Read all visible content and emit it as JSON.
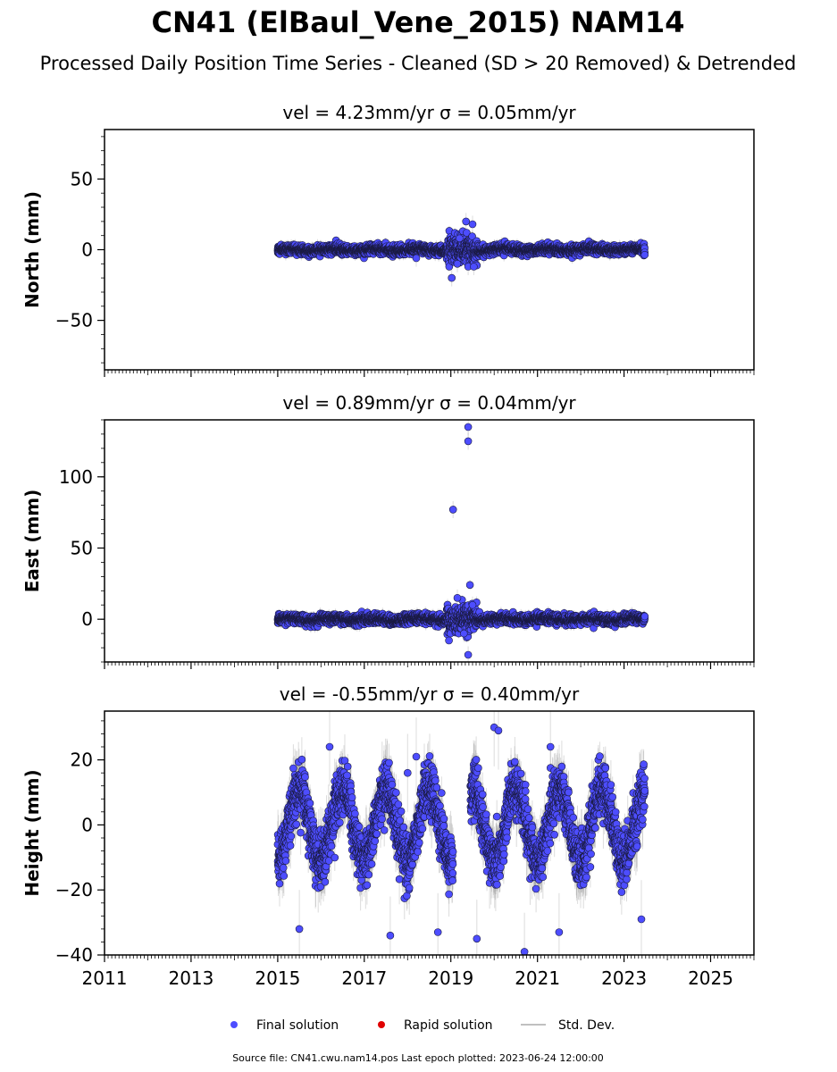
{
  "title": "CN41 (ElBaul_Vene_2015) NAM14",
  "subtitle": "Processed Daily Position Time Series - Cleaned (SD > 20 Removed) & Detrended",
  "footer": "Source file: CN41.cwu.nam14.pos  Last epoch plotted: 2023-06-24 12:00:00",
  "legend": [
    {
      "label": "Final solution",
      "color": "#4d4dff",
      "marker": "circle"
    },
    {
      "label": "Rapid solution",
      "color": "#e00000",
      "marker": "circle"
    },
    {
      "label": "Std. Dev.",
      "color": "#c0c0c0",
      "marker": "line"
    }
  ],
  "chart_data": [
    {
      "type": "scatter",
      "title": "vel = 4.23mm/yr   σ = 0.05mm/yr",
      "ylabel": "North (mm)",
      "xlim": [
        2011,
        2026
      ],
      "ylim": [
        -85,
        85
      ],
      "yticks": [
        -50,
        0,
        50
      ],
      "xticks": [
        2011,
        2013,
        2015,
        2017,
        2019,
        2021,
        2023,
        2025
      ],
      "x_range": [
        2015.0,
        2023.48
      ],
      "noise_sd": 1.6,
      "seasonal_amplitude": 0.8,
      "std_dev_band": 3,
      "disturbed_interval": [
        2018.9,
        2019.6
      ],
      "disturbed_sd": 5,
      "outliers": [
        {
          "x": 2019.35,
          "y": 20
        },
        {
          "x": 2019.5,
          "y": 18
        },
        {
          "x": 2019.02,
          "y": -20
        },
        {
          "x": 2019.2,
          "y": 8
        },
        {
          "x": 2019.4,
          "y": -12
        },
        {
          "x": 2019.53,
          "y": -12
        },
        {
          "x": 2019.15,
          "y": -10
        },
        {
          "x": 2018.2,
          "y": -6
        }
      ]
    },
    {
      "type": "scatter",
      "title": "vel = 0.89mm/yr   σ = 0.04mm/yr",
      "ylabel": "East (mm)",
      "xlim": [
        2011,
        2026
      ],
      "ylim": [
        -30,
        140
      ],
      "yticks": [
        0,
        50,
        100
      ],
      "xticks": [
        2011,
        2013,
        2015,
        2017,
        2019,
        2021,
        2023,
        2025
      ],
      "x_range": [
        2015.0,
        2023.48
      ],
      "noise_sd": 1.6,
      "seasonal_amplitude": 0.8,
      "std_dev_band": 3,
      "disturbed_interval": [
        2018.9,
        2019.6
      ],
      "disturbed_sd": 5,
      "outliers": [
        {
          "x": 2019.4,
          "y": 135
        },
        {
          "x": 2019.4,
          "y": 125
        },
        {
          "x": 2019.05,
          "y": 77
        },
        {
          "x": 2019.15,
          "y": 15
        },
        {
          "x": 2019.4,
          "y": -25
        },
        {
          "x": 2019.5,
          "y": 10
        },
        {
          "x": 2019.3,
          "y": -10
        }
      ]
    },
    {
      "type": "scatter",
      "title": "vel = -0.55mm/yr   σ = 0.40mm/yr",
      "ylabel": "Height (mm)",
      "xlim": [
        2011,
        2026
      ],
      "ylim": [
        -40,
        35
      ],
      "yticks": [
        -40,
        -20,
        0,
        20
      ],
      "xticks": [
        2011,
        2013,
        2015,
        2017,
        2019,
        2021,
        2023,
        2025
      ],
      "x_range": [
        2015.0,
        2023.48
      ],
      "noise_sd": 4,
      "seasonal_amplitude": 11,
      "seasonal_phase": 0.25,
      "std_dev_band": 6,
      "data_gap": [
        2019.05,
        2019.45
      ],
      "outliers": [
        {
          "x": 2020.0,
          "y": 30
        },
        {
          "x": 2020.1,
          "y": 29
        },
        {
          "x": 2016.2,
          "y": 24
        },
        {
          "x": 2021.3,
          "y": 24
        },
        {
          "x": 2018.2,
          "y": 21
        },
        {
          "x": 2018.0,
          "y": 16
        },
        {
          "x": 2019.6,
          "y": -35
        },
        {
          "x": 2020.7,
          "y": -39
        },
        {
          "x": 2015.5,
          "y": -32
        },
        {
          "x": 2017.6,
          "y": -34
        },
        {
          "x": 2021.5,
          "y": -33
        },
        {
          "x": 2023.4,
          "y": -29
        },
        {
          "x": 2018.7,
          "y": -33
        }
      ]
    }
  ]
}
